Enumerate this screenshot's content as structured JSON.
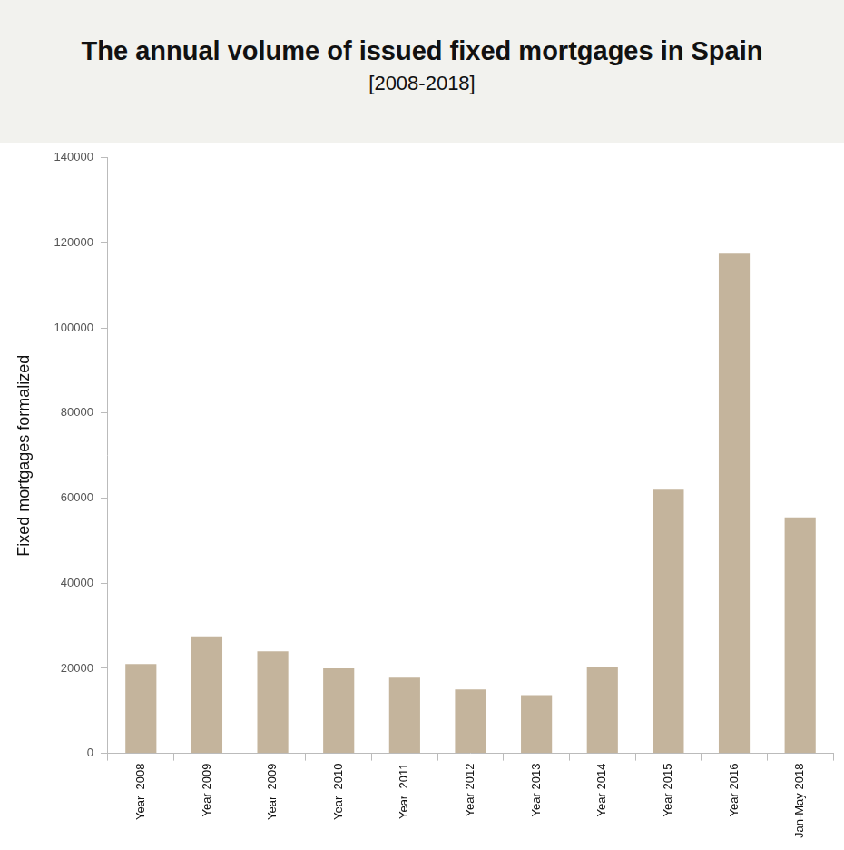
{
  "chart_data": {
    "type": "bar",
    "title": "The annual volume of issued fixed mortgages in Spain",
    "subtitle": "[2008-2018]",
    "y_label": "Fixed mortgages formalized",
    "categories": [
      "Year  2008",
      "Year 2009",
      "Year  2009",
      "Year  2010",
      "Year  2011",
      "Year 2012",
      "Year 2013",
      "Year 2014",
      "Year 2015",
      "Year 2016",
      "Jan-May 2018"
    ],
    "values": [
      21000,
      27500,
      24000,
      20000,
      17800,
      15000,
      13700,
      20400,
      62000,
      117500,
      55500
    ],
    "color": "#c4b49c",
    "ylim": [
      0,
      140000
    ],
    "yticks": [
      0,
      20000,
      40000,
      60000,
      80000,
      100000,
      120000,
      140000
    ],
    "grid": false
  }
}
